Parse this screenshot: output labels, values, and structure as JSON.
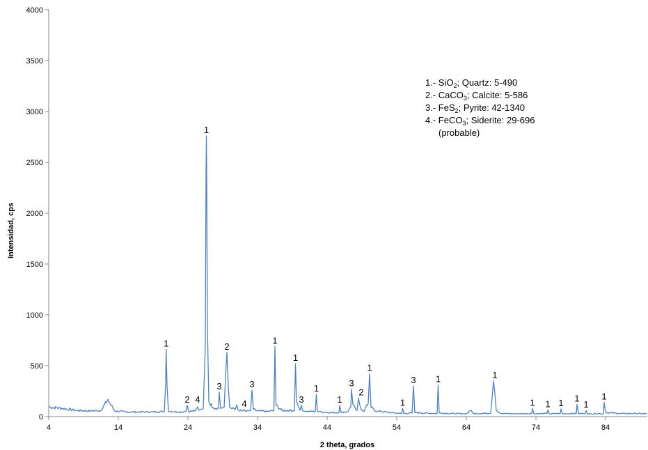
{
  "chart_data": {
    "type": "line",
    "title": "",
    "xlabel": "2 theta, grados",
    "ylabel": "Intensidad, cps",
    "xlim": [
      4,
      90
    ],
    "ylim": [
      0,
      4000
    ],
    "x_ticks": [
      "4",
      "14",
      "24",
      "34",
      "44",
      "54",
      "64",
      "74",
      "84"
    ],
    "y_ticks": [
      "0",
      "500",
      "1000",
      "1500",
      "2000",
      "2500",
      "3000",
      "3500",
      "4000"
    ],
    "grid": false,
    "legend_position": "top-right",
    "line_color": "#4F81BD",
    "series": [
      {
        "x": [
          4.0,
          6.0,
          8.0,
          10.0,
          11.5,
          12.4,
          12.5,
          12.6,
          13.5,
          15.0,
          17.0,
          19.0,
          20.6,
          20.8,
          20.87,
          21.0,
          21.2,
          22.5,
          23.7,
          23.9,
          24.1,
          25.0,
          25.4,
          25.6,
          26.2,
          26.5,
          26.6,
          26.65,
          26.7,
          26.8,
          27.0,
          27.6,
          28.4,
          28.5,
          28.7,
          29.2,
          29.4,
          29.6,
          29.8,
          30.0,
          30.8,
          31.0,
          31.2,
          31.9,
          32.1,
          32.3,
          33.0,
          33.2,
          33.4,
          34.0,
          35.5,
          36.35,
          36.5,
          36.65,
          37.5,
          39.3,
          39.45,
          39.6,
          40.1,
          40.3,
          40.5,
          41.0,
          42.3,
          42.45,
          42.6,
          44.0,
          45.7,
          45.8,
          46.0,
          47.0,
          47.4,
          47.5,
          47.7,
          48.3,
          48.5,
          48.7,
          48.9,
          49.3,
          49.9,
          50.1,
          50.3,
          51.0,
          53.0,
          54.7,
          54.85,
          55.0,
          56.2,
          56.4,
          56.6,
          57.5,
          59.8,
          59.95,
          60.1,
          62.0,
          64.0,
          64.7,
          65.0,
          66.0,
          67.5,
          67.7,
          67.9,
          68.1,
          68.3,
          69.0,
          71.0,
          73.4,
          73.5,
          73.7,
          75.6,
          75.7,
          75.9,
          77.5,
          77.6,
          77.8,
          79.8,
          79.9,
          80.1,
          81.1,
          81.2,
          81.4,
          83.0,
          83.7,
          83.8,
          84.0,
          86.0,
          88.0,
          90.0
        ],
        "y": [
          95,
          80,
          60,
          55,
          60,
          155,
          170,
          150,
          55,
          45,
          45,
          45,
          50,
          320,
          660,
          300,
          55,
          45,
          50,
          110,
          50,
          55,
          95,
          60,
          80,
          700,
          2400,
          2760,
          2300,
          900,
          150,
          90,
          80,
          240,
          80,
          90,
          380,
          630,
          300,
          90,
          70,
          115,
          65,
          55,
          70,
          50,
          60,
          260,
          70,
          55,
          50,
          60,
          690,
          110,
          60,
          60,
          520,
          150,
          60,
          110,
          55,
          50,
          50,
          220,
          50,
          40,
          40,
          110,
          40,
          50,
          100,
          270,
          120,
          60,
          180,
          110,
          70,
          50,
          130,
          420,
          90,
          55,
          40,
          30,
          80,
          30,
          35,
          300,
          40,
          35,
          30,
          310,
          35,
          30,
          28,
          60,
          30,
          30,
          35,
          180,
          350,
          230,
          60,
          30,
          28,
          30,
          80,
          28,
          30,
          65,
          28,
          30,
          75,
          28,
          30,
          120,
          30,
          30,
          60,
          25,
          30,
          25,
          140,
          40,
          30,
          30,
          28
        ]
      }
    ],
    "peak_labels": [
      {
        "text": "1",
        "x": 20.87,
        "y": 660
      },
      {
        "text": "2",
        "x": 23.9,
        "y": 110
      },
      {
        "text": "4",
        "x": 25.4,
        "y": 110
      },
      {
        "text": "1",
        "x": 26.65,
        "y": 2760
      },
      {
        "text": "3",
        "x": 28.5,
        "y": 240
      },
      {
        "text": "2",
        "x": 29.6,
        "y": 630
      },
      {
        "text": "4",
        "x": 32.1,
        "y": 70
      },
      {
        "text": "3",
        "x": 33.2,
        "y": 260
      },
      {
        "text": "1",
        "x": 36.5,
        "y": 690
      },
      {
        "text": "1",
        "x": 39.45,
        "y": 520
      },
      {
        "text": "3",
        "x": 40.3,
        "y": 110
      },
      {
        "text": "1",
        "x": 42.45,
        "y": 220
      },
      {
        "text": "1",
        "x": 45.8,
        "y": 110
      },
      {
        "text": "3",
        "x": 47.5,
        "y": 270
      },
      {
        "text": "2",
        "x": 48.9,
        "y": 180
      },
      {
        "text": "1",
        "x": 50.1,
        "y": 420
      },
      {
        "text": "1",
        "x": 54.85,
        "y": 80
      },
      {
        "text": "3",
        "x": 56.4,
        "y": 300
      },
      {
        "text": "1",
        "x": 59.95,
        "y": 310
      },
      {
        "text": "1",
        "x": 68.1,
        "y": 350
      },
      {
        "text": "1",
        "x": 73.5,
        "y": 80
      },
      {
        "text": "1",
        "x": 75.7,
        "y": 65
      },
      {
        "text": "1",
        "x": 77.6,
        "y": 75
      },
      {
        "text": "1",
        "x": 79.9,
        "y": 120
      },
      {
        "text": "1",
        "x": 81.2,
        "y": 60
      },
      {
        "text": "1",
        "x": 83.8,
        "y": 140
      }
    ],
    "legend": {
      "line1": {
        "pre": "1.- SiO",
        "sub": "2",
        "post": "; Quartz: 5-490"
      },
      "line2": {
        "pre": "2.- CaCO",
        "sub": "3",
        "post": "; Calcite: 5-586"
      },
      "line3": {
        "pre": "3.- FeS",
        "sub": "2",
        "post": "; Pyrite: 42-1340"
      },
      "line4": {
        "pre": "4.- FeCO",
        "sub": "3",
        "post": "; Siderite: 29-696"
      },
      "line5": "(probable)"
    }
  }
}
